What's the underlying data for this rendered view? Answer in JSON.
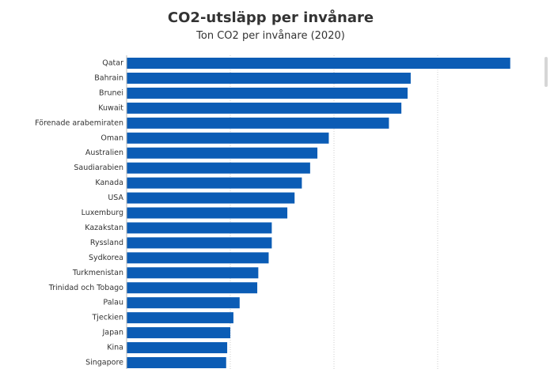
{
  "colors": {
    "bar": "#0b5cb5",
    "grid": "#cccccc",
    "text": "#333333"
  },
  "chart_data": {
    "type": "bar",
    "orientation": "horizontal",
    "title": "CO2-utsläpp per invånare",
    "subtitle": "Ton CO2 per invånare (2020)",
    "xlim": [
      0,
      40
    ],
    "grid": true,
    "categories": [
      "Qatar",
      "Bahrain",
      "Brunei",
      "Kuwait",
      "Förenade arabemiraten",
      "Oman",
      "Australien",
      "Saudiarabien",
      "Kanada",
      "USA",
      "Luxemburg",
      "Kazakstan",
      "Ryssland",
      "Sydkorea",
      "Turkmenistan",
      "Trinidad och Tobago",
      "Palau",
      "Tjeckien",
      "Japan",
      "Kina",
      "Singapore"
    ],
    "values": [
      37.0,
      27.4,
      27.1,
      26.5,
      25.3,
      19.5,
      18.4,
      17.7,
      16.9,
      16.2,
      15.5,
      14.0,
      14.0,
      13.7,
      12.7,
      12.6,
      10.9,
      10.3,
      10.0,
      9.7,
      9.6
    ]
  }
}
